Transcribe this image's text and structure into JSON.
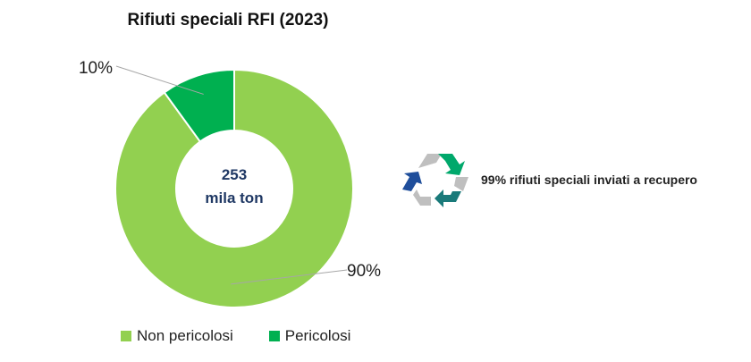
{
  "chart_data": {
    "type": "pie",
    "title": "Rifiuti speciali RFI (2023)",
    "center_label": [
      "253",
      "mila ton"
    ],
    "categories": [
      "Non pericolosi",
      "Pericolosi"
    ],
    "values": [
      90,
      10
    ],
    "value_labels": [
      "90%",
      "10%"
    ],
    "colors": [
      "#92D050",
      "#00B050"
    ],
    "legend_position": "bottom"
  },
  "callout": {
    "text": "99% rifiuti speciali inviati a recupero",
    "icon": "recycle-icon"
  }
}
